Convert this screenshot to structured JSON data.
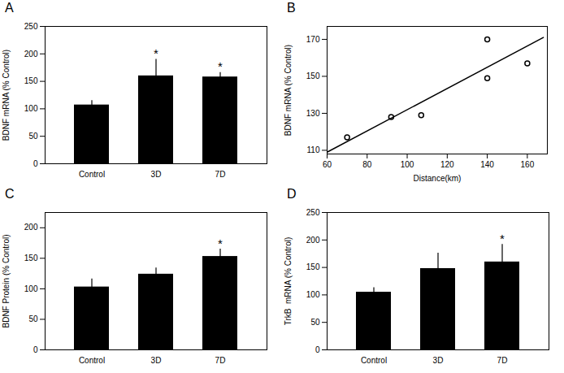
{
  "chart_data": [
    {
      "type": "bar",
      "title": "A",
      "categories": [
        "Control",
        "3D",
        "7D"
      ],
      "values": [
        107,
        160,
        158
      ],
      "errors": [
        8,
        30,
        8
      ],
      "color": "#000000",
      "ylabel": "BDNF mRNA (% Control)",
      "ylim": [
        0,
        250
      ],
      "yticks": [
        0,
        50,
        100,
        150,
        200,
        250
      ],
      "grid": false,
      "annotations": [
        {
          "category": "3D",
          "text": "*"
        },
        {
          "category": "7D",
          "text": "*"
        }
      ]
    },
    {
      "type": "scatter",
      "title": "B",
      "xlabel": "Distance(km)",
      "ylabel": "BDNF mRNA (% Control)",
      "series": [
        {
          "type": "scatter",
          "color": "#000000",
          "marker": "circle",
          "x": [
            70,
            92,
            107,
            140,
            160,
            140
          ],
          "values": [
            117,
            128,
            129,
            149,
            157,
            170
          ]
        },
        {
          "type": "line",
          "color": "#000000",
          "line_style": "solid",
          "x": [
            60,
            168
          ],
          "values": [
            109,
            171
          ]
        }
      ],
      "xlim": [
        60,
        170
      ],
      "xticks": [
        60,
        80,
        100,
        120,
        140,
        160
      ],
      "ylim": [
        108,
        177
      ],
      "yticks": [
        110,
        130,
        150,
        170
      ],
      "grid": false
    },
    {
      "type": "bar",
      "title": "C",
      "categories": [
        "Control",
        "3D",
        "7D"
      ],
      "values": [
        103,
        124,
        153
      ],
      "errors": [
        13,
        10,
        12
      ],
      "color": "#000000",
      "ylabel": "BDNF Protein (% Control)",
      "ylim": [
        0,
        225
      ],
      "yticks": [
        0,
        50,
        100,
        150,
        200
      ],
      "grid": false,
      "annotations": [
        {
          "category": "7D",
          "text": "*"
        }
      ]
    },
    {
      "type": "bar",
      "title": "D",
      "categories": [
        "Control",
        "3D",
        "7D"
      ],
      "values": [
        105,
        148,
        160
      ],
      "errors": [
        8,
        28,
        32
      ],
      "color": "#000000",
      "ylabel": "TrkB  mRNA (% Control)",
      "ylim": [
        0,
        250
      ],
      "yticks": [
        0,
        50,
        100,
        150,
        200,
        250
      ],
      "grid": false,
      "annotations": [
        {
          "category": "7D",
          "text": "*"
        }
      ]
    }
  ]
}
